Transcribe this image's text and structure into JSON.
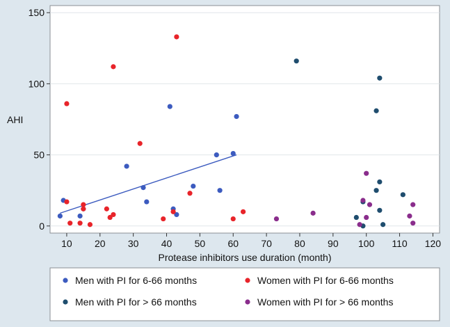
{
  "chart_data": {
    "type": "scatter",
    "title": "",
    "xlabel": "Protease inhibitors use duration (month)",
    "ylabel": "AHI",
    "xlim": [
      5,
      122
    ],
    "ylim": [
      -5,
      155
    ],
    "xticks": [
      10,
      20,
      30,
      40,
      50,
      60,
      70,
      80,
      90,
      100,
      110,
      120
    ],
    "yticks": [
      0,
      50,
      100,
      150
    ],
    "grid": "horizontal",
    "legend_position": "bottom",
    "series": [
      {
        "name": "Men with PI for 6-66 months",
        "color": "#3c5bbf",
        "points": [
          [
            8,
            7
          ],
          [
            9,
            18
          ],
          [
            14,
            7
          ],
          [
            15,
            12
          ],
          [
            28,
            42
          ],
          [
            33,
            27
          ],
          [
            34,
            17
          ],
          [
            41,
            84
          ],
          [
            42,
            12
          ],
          [
            43,
            8
          ],
          [
            48,
            28
          ],
          [
            55,
            50
          ],
          [
            56,
            25
          ],
          [
            60,
            51
          ],
          [
            61,
            77
          ]
        ]
      },
      {
        "name": "Women with PI for 6-66 months",
        "color": "#e8242a",
        "points": [
          [
            10,
            86
          ],
          [
            10,
            17
          ],
          [
            11,
            2
          ],
          [
            14,
            2
          ],
          [
            15,
            15
          ],
          [
            15,
            12
          ],
          [
            17,
            1
          ],
          [
            22,
            12
          ],
          [
            23,
            6
          ],
          [
            24,
            8
          ],
          [
            24,
            112
          ],
          [
            32,
            58
          ],
          [
            39,
            5
          ],
          [
            42,
            10
          ],
          [
            43,
            133
          ],
          [
            47,
            23
          ],
          [
            60,
            5
          ],
          [
            63,
            10
          ]
        ]
      },
      {
        "name": "Men with PI for > 66 months",
        "color": "#1f4d6e",
        "points": [
          [
            79,
            116
          ],
          [
            97,
            6
          ],
          [
            99,
            0
          ],
          [
            99,
            17
          ],
          [
            103,
            25
          ],
          [
            103,
            81
          ],
          [
            104,
            104
          ],
          [
            104,
            31
          ],
          [
            104,
            11
          ],
          [
            105,
            1
          ],
          [
            111,
            22
          ]
        ]
      },
      {
        "name": "Women with PI for > 66 months",
        "color": "#8a2d8c",
        "points": [
          [
            73,
            5
          ],
          [
            84,
            9
          ],
          [
            98,
            1
          ],
          [
            99,
            18
          ],
          [
            100,
            37
          ],
          [
            100,
            6
          ],
          [
            101,
            15
          ],
          [
            113,
            7
          ],
          [
            114,
            15
          ],
          [
            114,
            2
          ]
        ]
      }
    ],
    "fit_line": {
      "series": "Men with PI for 6-66 months",
      "color": "#3c5bbf",
      "from": [
        8,
        9
      ],
      "to": [
        61,
        50
      ]
    }
  }
}
